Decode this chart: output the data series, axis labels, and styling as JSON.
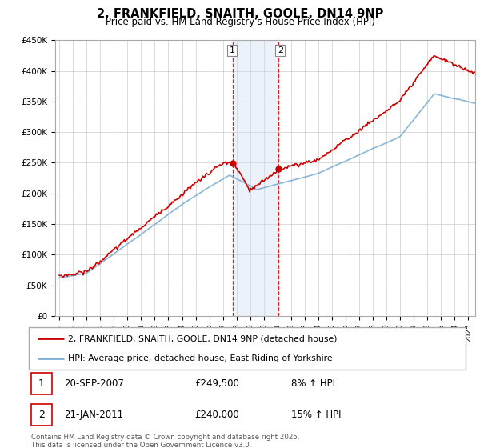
{
  "title": "2, FRANKFIELD, SNAITH, GOOLE, DN14 9NP",
  "subtitle": "Price paid vs. HM Land Registry's House Price Index (HPI)",
  "ylabel_ticks": [
    "£0",
    "£50K",
    "£100K",
    "£150K",
    "£200K",
    "£250K",
    "£300K",
    "£350K",
    "£400K",
    "£450K"
  ],
  "ylim": [
    0,
    450000
  ],
  "xlim_start": 1994.7,
  "xlim_end": 2025.5,
  "hpi_color": "#7bafd4",
  "property_color": "#cc0000",
  "sale1_date": 2007.72,
  "sale1_price": 249500,
  "sale1_label": "1",
  "sale2_date": 2011.05,
  "sale2_price": 240000,
  "sale2_label": "2",
  "shade_color": "#cfe0f0",
  "dashed_color": "#cc0000",
  "legend_property": "2, FRANKFIELD, SNAITH, GOOLE, DN14 9NP (detached house)",
  "legend_hpi": "HPI: Average price, detached house, East Riding of Yorkshire",
  "table_row1": [
    "1",
    "20-SEP-2007",
    "£249,500",
    "8% ↑ HPI"
  ],
  "table_row2": [
    "2",
    "21-JAN-2011",
    "£240,000",
    "15% ↑ HPI"
  ],
  "footnote": "Contains HM Land Registry data © Crown copyright and database right 2025.\nThis data is licensed under the Open Government Licence v3.0.",
  "background_color": "#ffffff",
  "grid_color": "#cccccc"
}
